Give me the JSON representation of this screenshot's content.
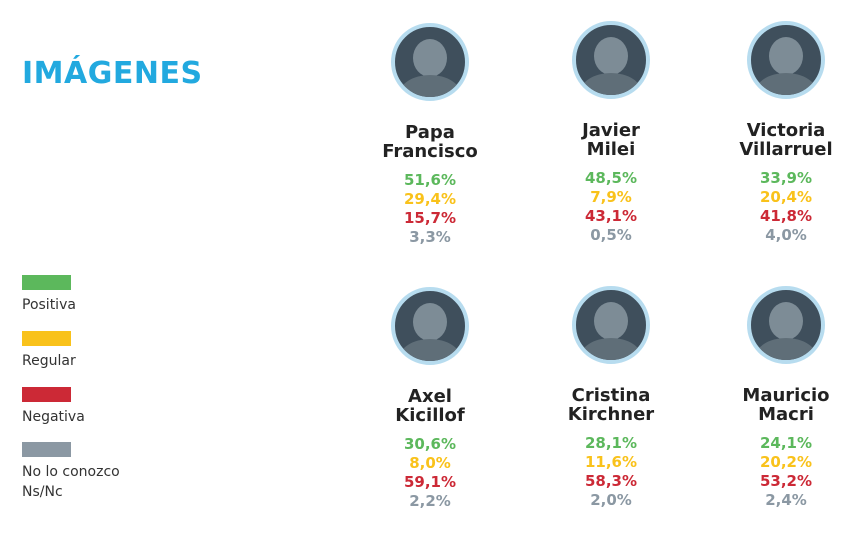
{
  "title": "IMÁGENES",
  "colors": {
    "positiva": "#5cb85c",
    "regular": "#f9c21b",
    "negativa": "#cc2936",
    "ns": "#8b98a3",
    "title": "#22a9df"
  },
  "legend": [
    {
      "label": "Positiva",
      "color": "#5cb85c"
    },
    {
      "label": "Regular",
      "color": "#f9c21b"
    },
    {
      "label": "Negativa",
      "color": "#cc2936"
    },
    {
      "label": "No lo conozco\nNs/Nc",
      "color": "#8b98a3"
    }
  ],
  "people": [
    {
      "name_line1": "Papa",
      "name_line2": "Francisco",
      "positiva": "51,6%",
      "regular": "29,4%",
      "negativa": "15,7%",
      "ns": "3,3%"
    },
    {
      "name_line1": "Javier",
      "name_line2": "Milei",
      "positiva": "48,5%",
      "regular": "7,9%",
      "negativa": "43,1%",
      "ns": "0,5%"
    },
    {
      "name_line1": "Victoria",
      "name_line2": "Villarruel",
      "positiva": "33,9%",
      "regular": "20,4%",
      "negativa": "41,8%",
      "ns": "4,0%"
    },
    {
      "name_line1": "Axel",
      "name_line2": "Kicillof",
      "positiva": "30,6%",
      "regular": "8,0%",
      "negativa": "59,1%",
      "ns": "2,2%"
    },
    {
      "name_line1": "Cristina",
      "name_line2": "Kirchner",
      "positiva": "28,1%",
      "regular": "11,6%",
      "negativa": "58,3%",
      "ns": "2,0%"
    },
    {
      "name_line1": "Mauricio",
      "name_line2": "Macri",
      "positiva": "24,1%",
      "regular": "20,2%",
      "negativa": "53,2%",
      "ns": "2,4%"
    }
  ],
  "chart_data": {
    "type": "table",
    "title": "IMÁGENES",
    "columns": [
      "Positiva",
      "Regular",
      "Negativa",
      "No lo conozco Ns/Nc"
    ],
    "rows": [
      {
        "name": "Papa Francisco",
        "values": [
          51.6,
          29.4,
          15.7,
          3.3
        ]
      },
      {
        "name": "Javier Milei",
        "values": [
          48.5,
          7.9,
          43.1,
          0.5
        ]
      },
      {
        "name": "Victoria Villarruel",
        "values": [
          33.9,
          20.4,
          41.8,
          4.0
        ]
      },
      {
        "name": "Axel Kicillof",
        "values": [
          30.6,
          8.0,
          59.1,
          2.2
        ]
      },
      {
        "name": "Cristina Kirchner",
        "values": [
          28.1,
          11.6,
          58.3,
          2.0
        ]
      },
      {
        "name": "Mauricio Macri",
        "values": [
          24.1,
          20.2,
          53.2,
          2.4
        ]
      }
    ]
  }
}
